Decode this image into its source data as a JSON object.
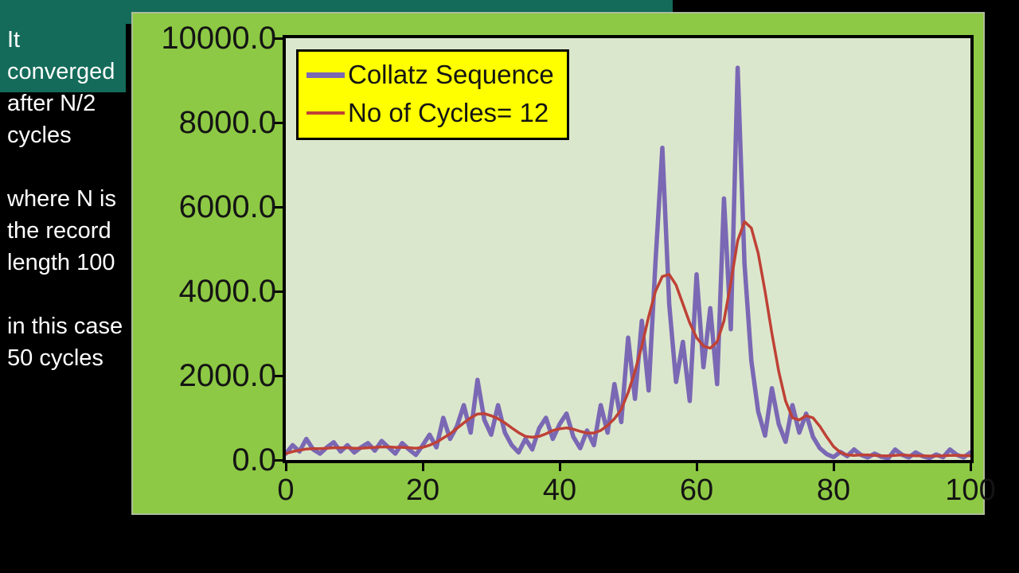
{
  "sidebar": {
    "paragraphs": [
      "It converged after N/2 cycles",
      "where N is the record length 100",
      "in this case 50 cycles"
    ]
  },
  "colors": {
    "teal_accent": "#146b5a",
    "panel_green": "#8dc944",
    "plot_background": "#dbe7cd",
    "legend_yellow": "#ffff00",
    "collatz_purple": "#7a68b4",
    "cycles_red": "#bf4136"
  },
  "chart_data": {
    "type": "line",
    "title": "",
    "xlabel": "",
    "ylabel": "",
    "xlim": [
      0,
      100
    ],
    "ylim": [
      0,
      10000
    ],
    "grid": false,
    "legend_position": "top-left",
    "yticks": [
      {
        "label": "10000.0",
        "value": 10000
      },
      {
        "label": "8000.0",
        "value": 8000
      },
      {
        "label": "6000.0",
        "value": 6000
      },
      {
        "label": "4000.0",
        "value": 4000
      },
      {
        "label": "2000.0",
        "value": 2000
      },
      {
        "label": "0.0",
        "value": 0
      }
    ],
    "xticks": [
      {
        "label": "0",
        "value": 0
      },
      {
        "label": "20",
        "value": 20
      },
      {
        "label": "40",
        "value": 40
      },
      {
        "label": "60",
        "value": 60
      },
      {
        "label": "80",
        "value": 80
      },
      {
        "label": "100",
        "value": 100
      }
    ],
    "series": [
      {
        "name": "Collatz Sequence",
        "color": "#7a68b4",
        "stroke_width": 5.5,
        "values": [
          150,
          350,
          200,
          500,
          250,
          150,
          300,
          420,
          200,
          350,
          180,
          300,
          400,
          220,
          450,
          300,
          150,
          400,
          250,
          120,
          350,
          600,
          300,
          1000,
          500,
          800,
          1300,
          650,
          1900,
          950,
          600,
          1300,
          650,
          350,
          180,
          500,
          250,
          750,
          1000,
          500,
          850,
          1100,
          550,
          280,
          700,
          350,
          1300,
          650,
          1800,
          900,
          2900,
          1450,
          3300,
          1650,
          4700,
          7400,
          3700,
          1850,
          2800,
          1400,
          4400,
          2200,
          3600,
          1800,
          6200,
          3100,
          9300,
          4650,
          2350,
          1150,
          580,
          1700,
          850,
          430,
          1300,
          650,
          1100,
          550,
          280,
          140,
          70,
          190,
          90,
          250,
          120,
          60,
          150,
          75,
          40,
          250,
          125,
          60,
          180,
          90,
          45,
          130,
          65,
          250,
          125,
          60,
          180
        ]
      },
      {
        "name": "No of Cycles= 12",
        "color": "#bf4136",
        "stroke_width": 3.5,
        "values": [
          150,
          200,
          230,
          260,
          270,
          270,
          280,
          290,
          290,
          290,
          280,
          280,
          290,
          300,
          310,
          310,
          300,
          300,
          290,
          280,
          300,
          350,
          420,
          520,
          620,
          750,
          880,
          1000,
          1090,
          1100,
          1050,
          980,
          880,
          760,
          650,
          560,
          540,
          560,
          620,
          700,
          740,
          760,
          730,
          680,
          640,
          640,
          700,
          820,
          980,
          1200,
          1600,
          2100,
          2700,
          3400,
          4000,
          4350,
          4400,
          4150,
          3700,
          3250,
          2900,
          2700,
          2650,
          2800,
          3300,
          4200,
          5200,
          5650,
          5500,
          4900,
          4000,
          3000,
          2100,
          1400,
          1000,
          950,
          1050,
          1000,
          800,
          550,
          320,
          180,
          120,
          110,
          120,
          120,
          110,
          100,
          100,
          110,
          120,
          110,
          100,
          100,
          95,
          95,
          100,
          110,
          110,
          105,
          100
        ]
      }
    ]
  }
}
